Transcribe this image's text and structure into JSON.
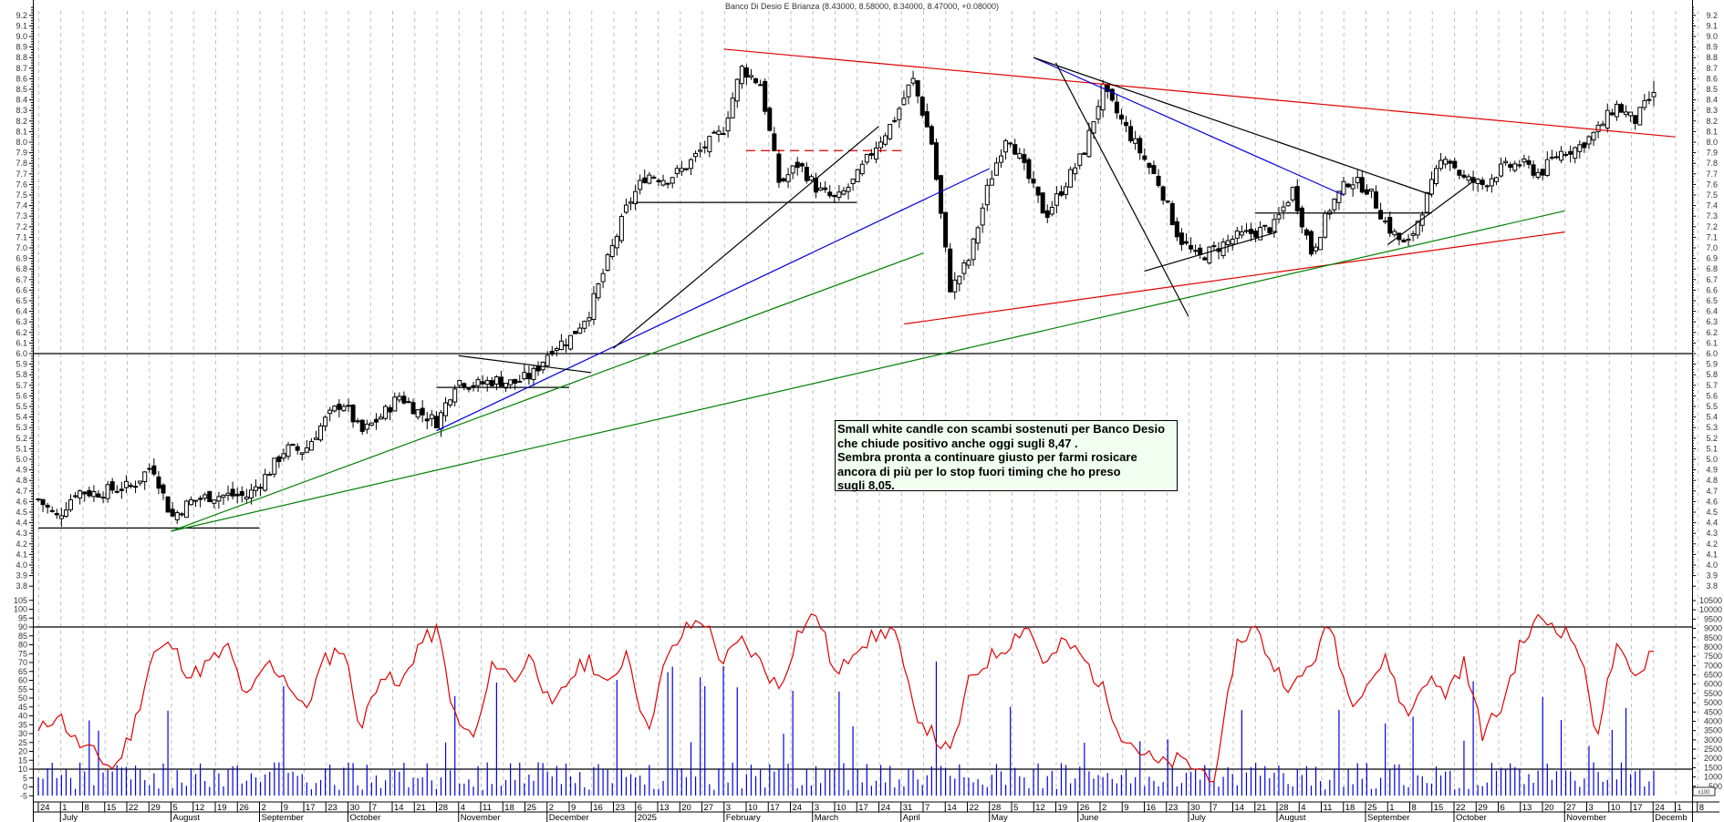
{
  "title": "Banco Di Desio E Brianza (8.43000, 8.58000, 8.34000, 8.47000, +0.08000)",
  "annotation": {
    "lines": [
      "Small white candle con scambi sostenuti per Banco Desio",
      "che chiude positivo anche oggi sugli 8,47 .",
      "Sembra pronta a continuare giusto per farmi rosicare",
      "ancora di più per lo stop fuori timing che ho preso",
      "sugli 8,05."
    ]
  },
  "colors": {
    "rsi": "#e00000",
    "volume": "#0000e0",
    "trend_red": "#e00000",
    "trend_green": "#008000",
    "trend_blue": "#0000e0",
    "trend_black": "#000000",
    "grid": "#c0c0c0",
    "note_bg": "#f0fff0"
  },
  "volume_unit_label": "x100",
  "chart_data": [
    {
      "type": "candlestick",
      "title": "Banco Di Desio E Brianza (8.43000, 8.58000, 8.34000, 8.47000, +0.08000)",
      "ylabel": "Price",
      "ylim": [
        3.8,
        9.2
      ],
      "y_ticks": [
        3.8,
        3.9,
        4.0,
        4.1,
        4.2,
        4.3,
        4.4,
        4.5,
        4.6,
        4.7,
        4.8,
        4.9,
        5.0,
        5.1,
        5.2,
        5.3,
        5.4,
        5.5,
        5.6,
        5.7,
        5.8,
        5.9,
        6.0,
        6.1,
        6.2,
        6.3,
        6.4,
        6.5,
        6.6,
        6.7,
        6.8,
        6.9,
        7.0,
        7.1,
        7.2,
        7.3,
        7.4,
        7.5,
        7.6,
        7.7,
        7.8,
        7.9,
        8.0,
        8.1,
        8.2,
        8.3,
        8.4,
        8.5,
        8.6,
        8.7,
        8.8,
        8.9,
        9.0,
        9.1,
        9.2
      ],
      "last_bar": {
        "open": 8.43,
        "high": 8.58,
        "low": 8.34,
        "close": 8.47,
        "change": 0.08
      },
      "weekly_closes_approx": [
        4.62,
        4.45,
        4.7,
        4.68,
        4.72,
        4.75,
        4.95,
        4.45,
        4.6,
        4.65,
        4.66,
        4.65,
        4.85,
        5.1,
        5.08,
        5.35,
        5.55,
        5.25,
        5.4,
        5.6,
        5.45,
        5.35,
        5.75,
        5.7,
        5.75,
        5.72,
        5.8,
        6.05,
        6.15,
        6.4,
        6.9,
        7.4,
        7.7,
        7.65,
        7.75,
        7.95,
        8.1,
        8.7,
        8.55,
        7.6,
        7.8,
        7.55,
        7.45,
        7.65,
        7.95,
        8.2,
        8.6,
        8.0,
        6.6,
        6.9,
        7.6,
        8.1,
        7.7,
        7.3,
        7.6,
        7.9,
        8.5,
        8.2,
        7.9,
        7.6,
        7.1,
        6.9,
        7.0,
        7.1,
        7.15,
        7.2,
        7.55,
        6.95,
        7.4,
        7.65,
        7.55,
        7.2,
        7.0,
        7.45,
        7.9,
        7.65,
        7.6,
        7.75,
        7.8,
        7.7,
        7.9,
        7.95,
        8.1,
        8.35,
        8.2,
        8.47
      ],
      "horizontal_lines": [
        {
          "price": 6.0,
          "color": "#000000",
          "span": "full"
        },
        {
          "price": 4.35,
          "color": "#000000",
          "from": "Jun 24",
          "to": "Sep 2"
        },
        {
          "price": 5.68,
          "color": "#000000",
          "from": "Oct 28",
          "to": "Dec 9"
        },
        {
          "price": 7.43,
          "color": "#000000",
          "from": "Jan 6",
          "to": "Mar 17"
        },
        {
          "price": 7.92,
          "color": "#e00000",
          "dashed": true,
          "from": "Feb 10",
          "to": "Apr 1"
        },
        {
          "price": 7.33,
          "color": "#000000",
          "from": "Jul 21",
          "to": "Sep 15"
        }
      ],
      "trendlines": [
        {
          "color": "#e00000",
          "from": [
            "Feb 3",
            8.88
          ],
          "to": [
            "Dec 1",
            8.05
          ]
        },
        {
          "color": "#e00000",
          "from": [
            "Apr 1",
            6.28
          ],
          "to": [
            "Oct 27",
            7.15
          ]
        },
        {
          "color": "#008000",
          "from": [
            "Aug 5",
            4.32
          ],
          "to": [
            "Apr 7",
            6.95
          ]
        },
        {
          "color": "#008000",
          "from": [
            "Aug 5",
            4.32
          ],
          "to": [
            "Oct 27",
            7.35
          ]
        },
        {
          "color": "#0000e0",
          "from": [
            "Oct 28",
            5.27
          ],
          "to": [
            "Apr 28",
            7.75
          ]
        },
        {
          "color": "#0000e0",
          "from": [
            "May 12",
            8.8
          ],
          "to": [
            "Aug 18",
            7.5
          ]
        },
        {
          "color": "#000000",
          "from": [
            "Dec 23",
            6.05
          ],
          "to": [
            "Mar 24",
            8.15
          ]
        },
        {
          "color": "#000000",
          "from": [
            "May 12",
            8.8
          ],
          "to": [
            "Sep 15",
            7.5
          ]
        },
        {
          "color": "#000000",
          "from": [
            "May 19",
            8.75
          ],
          "to": [
            "Jun 30",
            6.35
          ]
        },
        {
          "color": "#000000",
          "from": [
            "Jun 16",
            6.78
          ],
          "to": [
            "Jul 28",
            7.15
          ]
        },
        {
          "color": "#000000",
          "from": [
            "Sep 1",
            7.03
          ],
          "to": [
            "Sep 29",
            7.65
          ]
        },
        {
          "color": "#000000",
          "from": [
            "Nov 4",
            5.98
          ],
          "to": [
            "Dec 16",
            5.82
          ]
        }
      ]
    },
    {
      "type": "line",
      "title": "RSI",
      "ylim": [
        -5,
        105
      ],
      "y_ticks": [
        -5,
        0,
        5,
        10,
        15,
        20,
        25,
        30,
        35,
        40,
        45,
        50,
        55,
        60,
        65,
        70,
        75,
        80,
        85,
        90,
        95,
        100,
        105
      ],
      "reference_lines": [
        90,
        10
      ],
      "values_approx": [
        30,
        42,
        25,
        18,
        10,
        33,
        75,
        80,
        62,
        70,
        78,
        48,
        70,
        62,
        42,
        70,
        80,
        32,
        65,
        55,
        80,
        88,
        35,
        28,
        72,
        60,
        75,
        42,
        62,
        72,
        55,
        78,
        30,
        70,
        88,
        95,
        70,
        82,
        70,
        55,
        88,
        98,
        60,
        80,
        84,
        90,
        45,
        30,
        18,
        60,
        72,
        80,
        92,
        68,
        82,
        72,
        55,
        30,
        20,
        12,
        15,
        10,
        5,
        80,
        90,
        68,
        55,
        70,
        92,
        48,
        60,
        72,
        38,
        62,
        52,
        70,
        30,
        45,
        80,
        95,
        90,
        80,
        30,
        78,
        60,
        80
      ]
    },
    {
      "type": "bar",
      "title": "Volume",
      "unit": "x100",
      "ylim": [
        0,
        10500
      ],
      "y_ticks": [
        500,
        1000,
        1500,
        2000,
        2500,
        3000,
        3500,
        4000,
        4500,
        5000,
        5500,
        6000,
        6500,
        7000,
        7500,
        8000,
        8500,
        9000,
        9500,
        10000,
        10500
      ]
    }
  ],
  "x_axis": {
    "day_ticks": [
      "24",
      "1",
      "8",
      "15",
      "22",
      "29",
      "5",
      "12",
      "19",
      "26",
      "2",
      "9",
      "17",
      "23",
      "30",
      "7",
      "14",
      "21",
      "28",
      "4",
      "11",
      "18",
      "25",
      "2",
      "9",
      "16",
      "23",
      "6",
      "13",
      "20",
      "27",
      "3",
      "10",
      "17",
      "24",
      "3",
      "10",
      "17",
      "24",
      "31",
      "7",
      "14",
      "22",
      "28",
      "5",
      "12",
      "19",
      "26",
      "2",
      "9",
      "16",
      "23",
      "30",
      "7",
      "14",
      "21",
      "28",
      "4",
      "11",
      "18",
      "25",
      "1",
      "8",
      "15",
      "22",
      "29",
      "6",
      "13",
      "20",
      "27",
      "3",
      "10",
      "17",
      "24",
      "1",
      "8"
    ],
    "months": [
      {
        "label": "July",
        "tick_index": 1
      },
      {
        "label": "August",
        "tick_index": 6
      },
      {
        "label": "September",
        "tick_index": 10
      },
      {
        "label": "October",
        "tick_index": 14
      },
      {
        "label": "November",
        "tick_index": 19
      },
      {
        "label": "December",
        "tick_index": 23
      },
      {
        "label": "2025",
        "tick_index": 27
      },
      {
        "label": "February",
        "tick_index": 31
      },
      {
        "label": "March",
        "tick_index": 35
      },
      {
        "label": "April",
        "tick_index": 39
      },
      {
        "label": "May",
        "tick_index": 43
      },
      {
        "label": "June",
        "tick_index": 47
      },
      {
        "label": "July",
        "tick_index": 52
      },
      {
        "label": "August",
        "tick_index": 56
      },
      {
        "label": "September",
        "tick_index": 60
      },
      {
        "label": "October",
        "tick_index": 64
      },
      {
        "label": "November",
        "tick_index": 69
      },
      {
        "label": "Decemb",
        "tick_index": 73
      }
    ]
  }
}
